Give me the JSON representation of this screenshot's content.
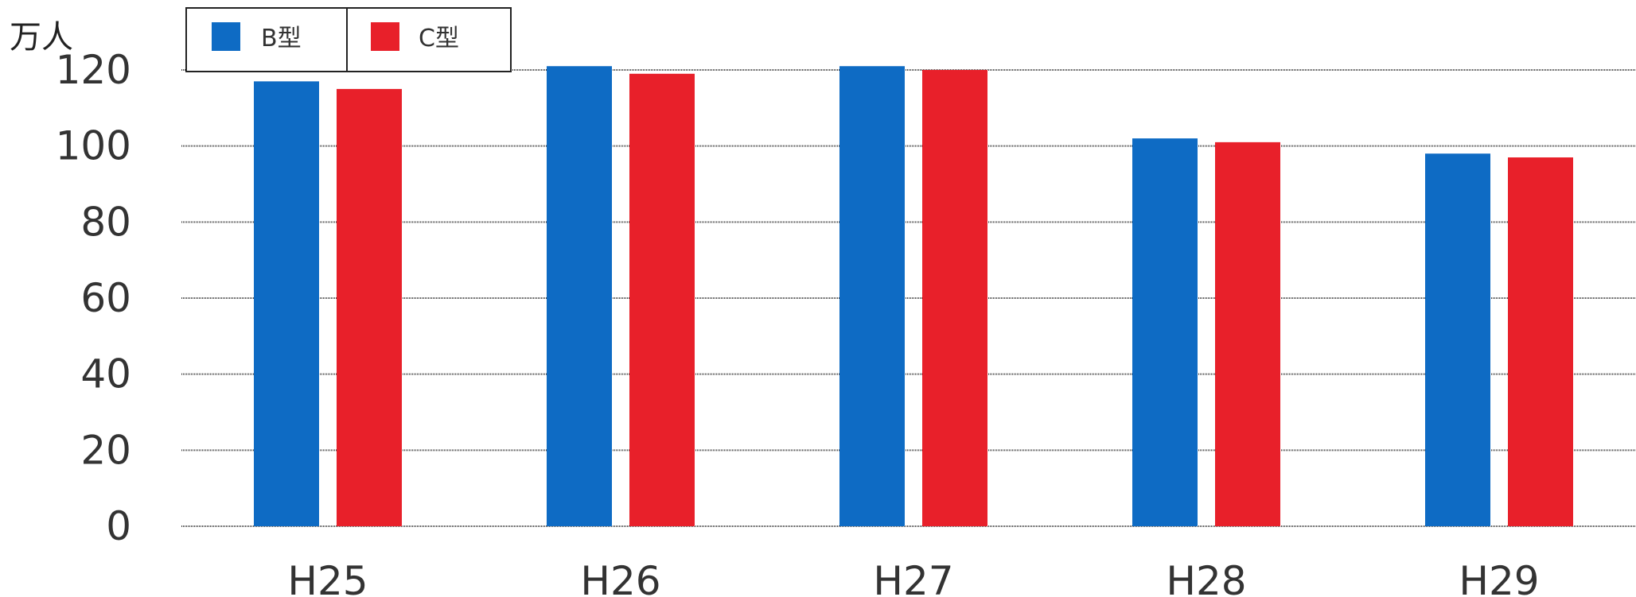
{
  "chart_data": {
    "type": "bar",
    "unit_label": "万人",
    "categories": [
      "H25",
      "H26",
      "H27",
      "H28",
      "H29"
    ],
    "series": [
      {
        "name": "B型",
        "color": "#0E6BC4",
        "values": [
          117,
          121,
          121,
          102,
          98
        ]
      },
      {
        "name": "C型",
        "color": "#E8202A",
        "values": [
          115,
          119,
          120,
          101,
          97
        ]
      }
    ],
    "ylim": [
      0,
      120
    ],
    "yticks": [
      0,
      20,
      40,
      60,
      80,
      100,
      120
    ],
    "grid": true,
    "legend_position": "top-left"
  }
}
